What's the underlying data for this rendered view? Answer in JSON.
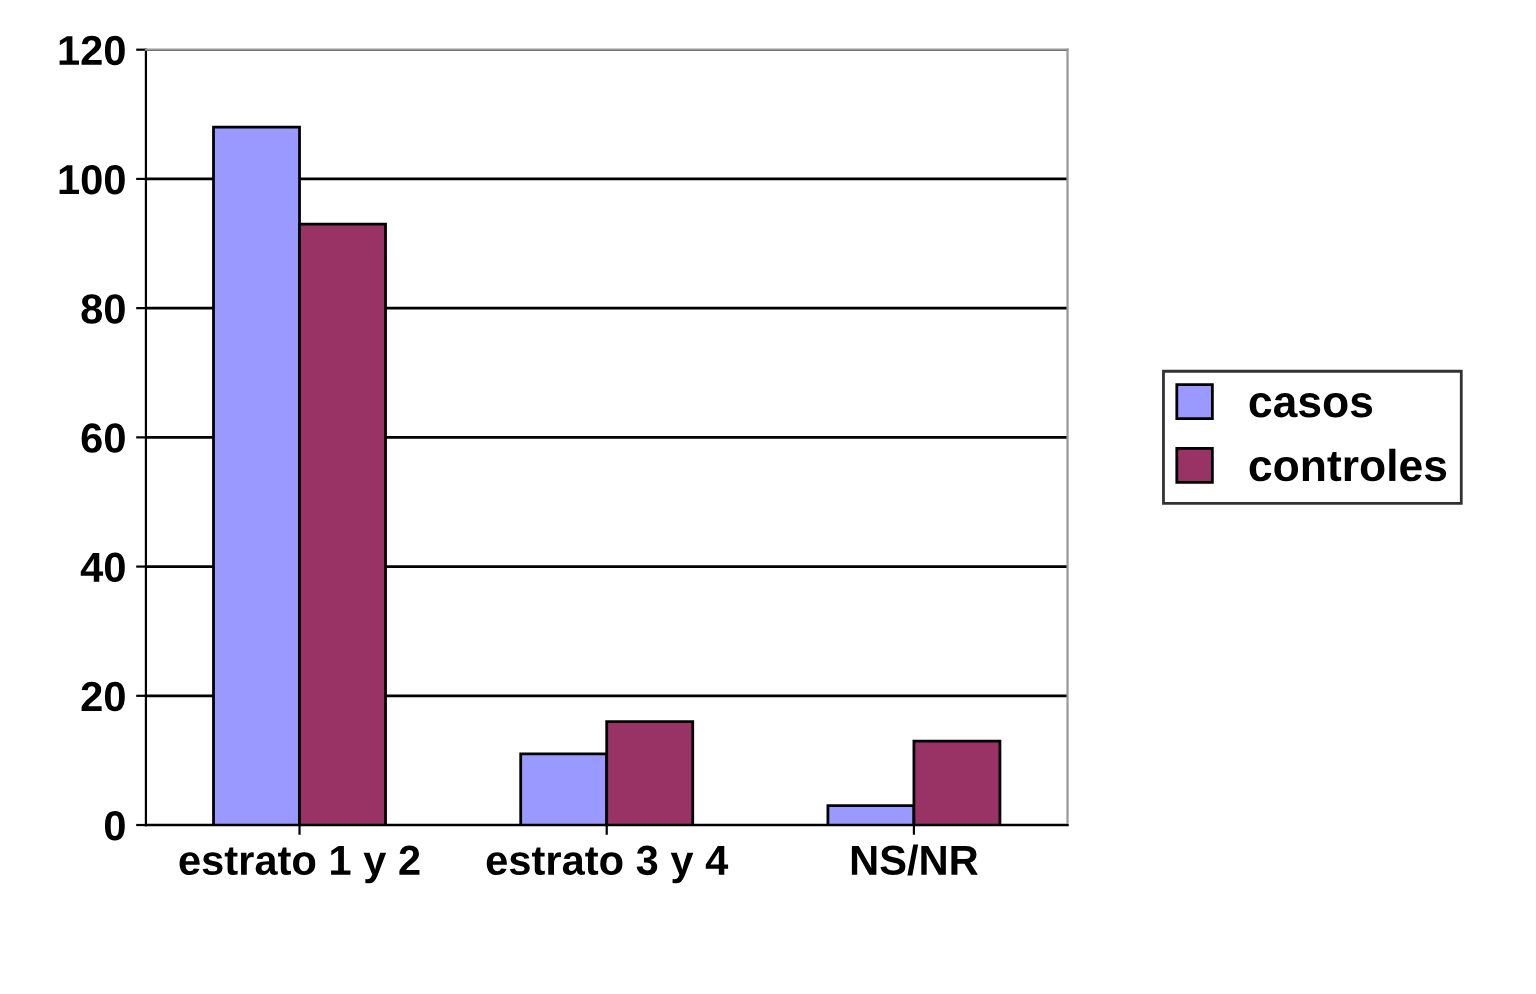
{
  "chart_data": {
    "type": "bar",
    "categories": [
      "estrato 1 y 2",
      "estrato 3 y 4",
      "NS/NR"
    ],
    "series": [
      {
        "name": "casos",
        "color": "#9999ff",
        "values": [
          108,
          11,
          3
        ]
      },
      {
        "name": "controles",
        "color": "#993366",
        "values": [
          93,
          16,
          13
        ]
      }
    ],
    "ylim": [
      0,
      120
    ],
    "yticks": [
      0,
      20,
      40,
      60,
      80,
      100,
      120
    ],
    "grid": "y",
    "legend": "right"
  }
}
